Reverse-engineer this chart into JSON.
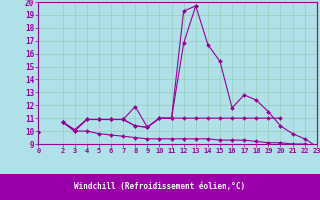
{
  "xlabel": "Windchill (Refroidissement éolien,°C)",
  "x": [
    0,
    1,
    2,
    3,
    4,
    5,
    6,
    7,
    8,
    9,
    10,
    11,
    12,
    13,
    14,
    15,
    16,
    17,
    18,
    19,
    20,
    21,
    22,
    23
  ],
  "line1": [
    9.9,
    null,
    10.7,
    10.1,
    10.9,
    10.9,
    10.9,
    10.9,
    10.4,
    10.3,
    11.0,
    11.0,
    19.3,
    19.7,
    16.7,
    15.4,
    11.8,
    12.8,
    12.4,
    11.5,
    10.4,
    9.8,
    9.4,
    8.8
  ],
  "line2": [
    9.9,
    null,
    10.7,
    10.1,
    10.9,
    10.9,
    10.9,
    10.9,
    10.4,
    10.3,
    11.0,
    11.0,
    16.8,
    19.7,
    null,
    null,
    null,
    null,
    null,
    null,
    null,
    null,
    null,
    null
  ],
  "line3": [
    9.9,
    null,
    10.7,
    10.0,
    10.9,
    10.9,
    10.9,
    10.9,
    11.9,
    10.3,
    11.0,
    11.0,
    11.0,
    11.0,
    11.0,
    11.0,
    11.0,
    11.0,
    11.0,
    11.0,
    11.0,
    null,
    null,
    null
  ],
  "line4": [
    9.9,
    null,
    10.7,
    10.0,
    10.0,
    9.8,
    9.7,
    9.6,
    9.5,
    9.4,
    9.4,
    9.4,
    9.4,
    9.4,
    9.4,
    9.3,
    9.3,
    9.3,
    9.2,
    9.1,
    9.1,
    9.0,
    9.0,
    8.8
  ],
  "color": "#990099",
  "bg_color": "#b0e0e8",
  "xlabel_bg": "#9900aa",
  "xlim": [
    0,
    23
  ],
  "ylim": [
    9,
    20
  ],
  "yticks": [
    9,
    10,
    11,
    12,
    13,
    14,
    15,
    16,
    17,
    18,
    19,
    20
  ],
  "xticks": [
    0,
    2,
    3,
    4,
    5,
    6,
    7,
    8,
    9,
    10,
    11,
    12,
    13,
    14,
    15,
    16,
    17,
    18,
    19,
    20,
    21,
    22,
    23
  ],
  "xtick_labels": [
    "0",
    "2",
    "3",
    "4",
    "5",
    "6",
    "7",
    "8",
    "9",
    "10",
    "11",
    "12",
    "13",
    "14",
    "15",
    "16",
    "17",
    "18",
    "19",
    "20",
    "21",
    "22",
    "23"
  ],
  "grid_color": "#99ccbb",
  "marker": "D",
  "markersize": 2.0,
  "linewidth": 0.8
}
